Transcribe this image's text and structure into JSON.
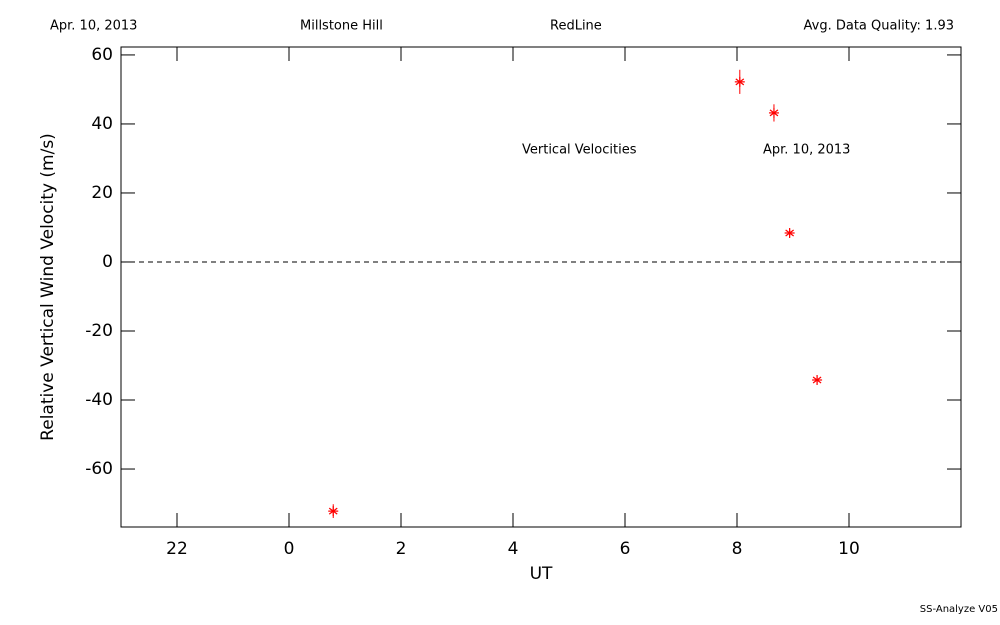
{
  "chart_data": {
    "type": "scatter",
    "header": [
      "Apr. 10, 2013",
      "Millstone Hill",
      "RedLine",
      "Avg. Data Quality: 1.93"
    ],
    "annotations": [
      "Vertical Velocities",
      "Apr. 10, 2013"
    ],
    "footer": "SS-Analyze V05",
    "xlabel": "UT",
    "ylabel": "Relative Vertical Wind Velocity (m/s)",
    "xlim": [
      -3,
      12
    ],
    "ylim": [
      -76.8,
      62.3
    ],
    "xticks": [
      {
        "value": -2,
        "label": "22"
      },
      0,
      2,
      4,
      6,
      8,
      10
    ],
    "yticks": [
      -60,
      -40,
      -20,
      0,
      20,
      40,
      60
    ],
    "hline": 0,
    "color": "#ff0000",
    "x": [
      0.79,
      8.05,
      8.66,
      8.94,
      9.43
    ],
    "values": [
      -72.2,
      52.2,
      43.2,
      8.4,
      -34.2
    ],
    "errors": [
      2,
      3.5,
      2.5,
      1,
      1
    ]
  }
}
